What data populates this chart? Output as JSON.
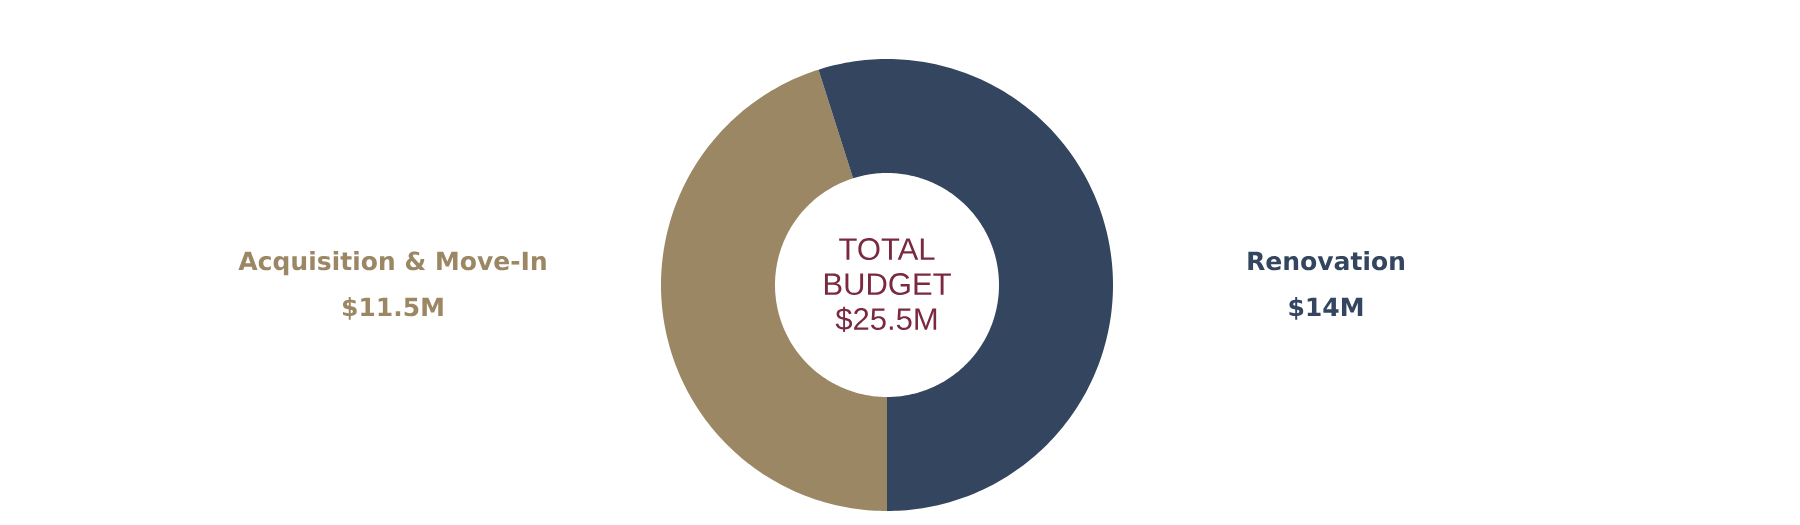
{
  "chart_data": {
    "type": "donut",
    "categories": [
      "Acquisition & Move-In",
      "Renovation"
    ],
    "values": [
      11.5,
      14
    ],
    "colors": [
      "#9b8763",
      "#34465f"
    ],
    "value_labels": [
      "$11.5M",
      "$14M"
    ],
    "annotations": [
      "TOTAL BUDGET $25.5M"
    ]
  }
}
